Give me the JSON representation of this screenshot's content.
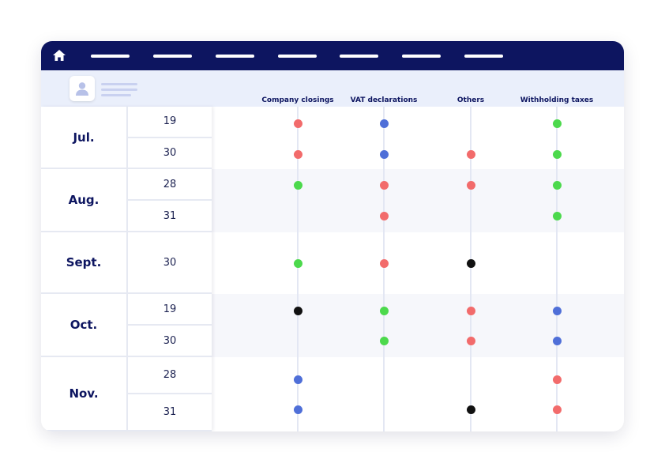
{
  "nav": {
    "home_icon": "home-icon",
    "items": [
      "",
      "",
      "",
      "",
      "",
      "",
      ""
    ]
  },
  "header": {
    "avatar_icon": "user-icon",
    "columns": [
      "Company closings",
      "VAT declarations",
      "Others",
      "Withholding taxes"
    ]
  },
  "colors": {
    "navy": "#0d1560",
    "red": "#f26b6b",
    "green": "#4cd94c",
    "blue": "#4f6fd8",
    "black": "#111111"
  },
  "schedule": [
    {
      "month": "Jul.",
      "days": [
        {
          "day": "19",
          "dots": [
            "red",
            "blue",
            null,
            "green"
          ]
        },
        {
          "day": "30",
          "dots": [
            "red",
            "blue",
            "red",
            "green"
          ]
        }
      ]
    },
    {
      "month": "Aug.",
      "days": [
        {
          "day": "28",
          "dots": [
            "green",
            "red",
            "red",
            "green"
          ]
        },
        {
          "day": "31",
          "dots": [
            null,
            "red",
            null,
            "green"
          ]
        }
      ]
    },
    {
      "month": "Sept.",
      "days": [
        {
          "day": "30",
          "dots": [
            "green",
            "red",
            "black",
            null
          ]
        }
      ]
    },
    {
      "month": "Oct.",
      "days": [
        {
          "day": "19",
          "dots": [
            "black",
            "green",
            "red",
            "blue"
          ]
        },
        {
          "day": "30",
          "dots": [
            null,
            "green",
            "red",
            "blue"
          ]
        }
      ]
    },
    {
      "month": "Nov.",
      "days": [
        {
          "day": "28",
          "dots": [
            "blue",
            null,
            null,
            "red"
          ]
        },
        {
          "day": "31",
          "dots": [
            "blue",
            null,
            "black",
            "red"
          ]
        }
      ]
    }
  ]
}
